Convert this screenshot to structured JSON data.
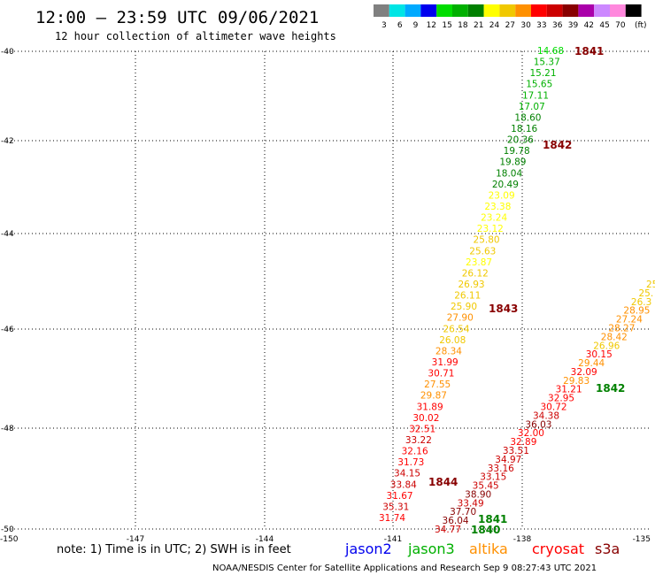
{
  "header": {
    "title": "12:00 – 23:59 UTC 09/06/2021",
    "subtitle": "12 hour collection of altimeter wave heights"
  },
  "legend": {
    "unit": "(ft)",
    "bins": [
      {
        "label": "3",
        "color": "#808080"
      },
      {
        "label": "6",
        "color": "#00e5e5"
      },
      {
        "label": "9",
        "color": "#00aaff"
      },
      {
        "label": "12",
        "color": "#0000ee"
      },
      {
        "label": "15",
        "color": "#00dd00"
      },
      {
        "label": "18",
        "color": "#00b000"
      },
      {
        "label": "21",
        "color": "#008000"
      },
      {
        "label": "24",
        "color": "#ffff00"
      },
      {
        "label": "27",
        "color": "#f0c800"
      },
      {
        "label": "30",
        "color": "#ff9000"
      },
      {
        "label": "33",
        "color": "#ff0000"
      },
      {
        "label": "36",
        "color": "#cc0000"
      },
      {
        "label": "39",
        "color": "#880000"
      },
      {
        "label": "42",
        "color": "#aa00aa"
      },
      {
        "label": "45",
        "color": "#cc88ff"
      },
      {
        "label": "70",
        "color": "#ff88dd"
      },
      {
        "label": "",
        "color": "#000000"
      }
    ]
  },
  "axes": {
    "lat_labels": [
      "-40",
      "-42",
      "-44",
      "-46",
      "-48",
      "-50"
    ],
    "lon_labels": [
      "-150",
      "-147",
      "-144",
      "-141",
      "-138",
      "-135"
    ]
  },
  "tracks": [
    {
      "id": "track-a",
      "values": [
        "14.68",
        "15.37",
        "15.21",
        "15.65",
        "17.11",
        "17.07",
        "18.60",
        "18.16",
        "20.36",
        "19.78",
        "19.89",
        "18.04",
        "20.49",
        "23.09",
        "23.38",
        "23.24",
        "23.12",
        "25.80",
        "25.63",
        "23.87",
        "26.12",
        "26.93",
        "26.11",
        "25.90",
        "27.90",
        "26.54",
        "26.08",
        "28.34",
        "31.99",
        "30.71",
        "27.55",
        "29.87",
        "31.89",
        "30.02",
        "32.51",
        "33.22",
        "32.16",
        "31.73",
        "34.15",
        "33.84",
        "31.67",
        "35.31",
        "31.74"
      ]
    },
    {
      "id": "track-b",
      "values": [
        "25.",
        "25.",
        "26.3",
        "28.95",
        "27.24",
        "28.27",
        "28.42",
        "26.96",
        "30.15",
        "29.44",
        "32.09",
        "29.83",
        "31.21",
        "32.95",
        "30.72",
        "34.38",
        "36.03",
        "32.00",
        "32.89",
        "33.51",
        "34.97",
        "33.16",
        "33.15",
        "35.45",
        "38.90",
        "33.49",
        "37.70",
        "36.04",
        "34.77"
      ]
    }
  ],
  "passes": [
    {
      "label": "1841",
      "color": "#880000"
    },
    {
      "label": "1842",
      "color": "#880000"
    },
    {
      "label": "1843",
      "color": "#880000"
    },
    {
      "label": "1844",
      "color": "#880000"
    },
    {
      "label": "1842",
      "color": "#008000"
    },
    {
      "label": "1841",
      "color": "#008000"
    },
    {
      "label": "1840",
      "color": "#008000"
    }
  ],
  "note": "note: 1) Time is in UTC; 2) SWH is in feet",
  "satellites": [
    {
      "name": "jason2",
      "color": "#0000ee"
    },
    {
      "name": "jason3",
      "color": "#00b000"
    },
    {
      "name": "altika",
      "color": "#ff9000"
    },
    {
      "name": "cryosat",
      "color": "#ff0000"
    },
    {
      "name": "s3a",
      "color": "#880000"
    }
  ],
  "footer": "NOAA/NESDIS Center for Satellite Applications and Research   Sep  9 08:27:43 UTC 2021"
}
